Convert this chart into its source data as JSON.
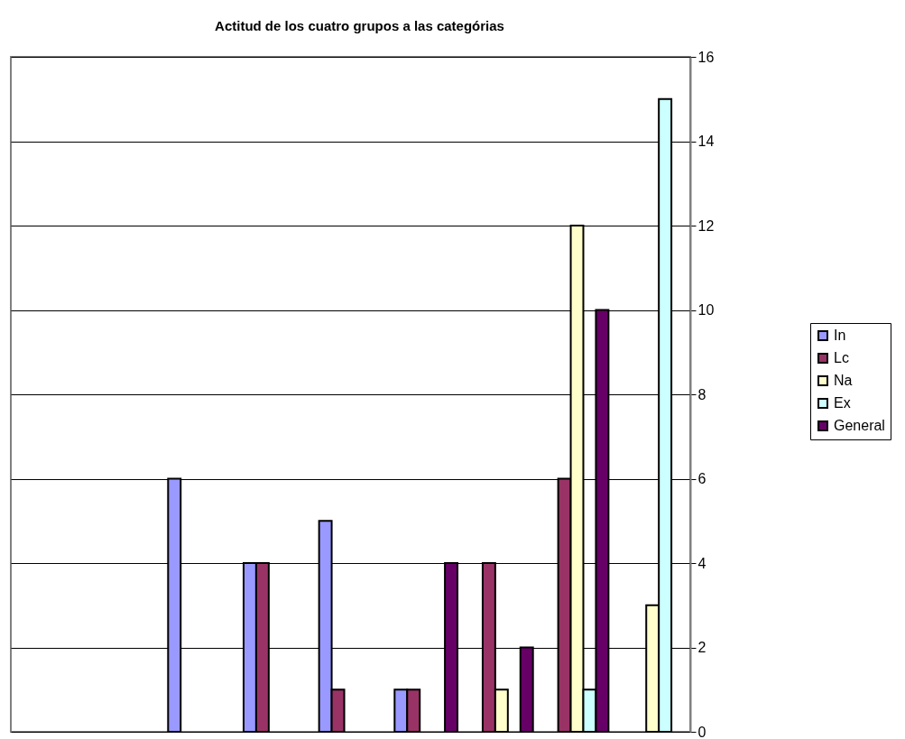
{
  "chart_data": {
    "type": "bar",
    "title": "Actitud de los cuatro grupos a las categórias",
    "categories": [
      null,
      null,
      null,
      null,
      null,
      null,
      null,
      null,
      null
    ],
    "series": [
      {
        "name": "In",
        "color": "#9999ff",
        "values": [
          0,
          0,
          6,
          4,
          5,
          1,
          0,
          0,
          0
        ]
      },
      {
        "name": "Lc",
        "color": "#993366",
        "values": [
          0,
          0,
          0,
          4,
          1,
          1,
          4,
          6,
          0
        ]
      },
      {
        "name": "Na",
        "color": "#ffffcc",
        "values": [
          0,
          0,
          0,
          0,
          0,
          0,
          1,
          12,
          3
        ]
      },
      {
        "name": "Ex",
        "color": "#ccffff",
        "values": [
          0,
          0,
          0,
          0,
          0,
          0,
          0,
          1,
          15
        ]
      },
      {
        "name": "General",
        "color": "#660066",
        "values": [
          0,
          0,
          0,
          0,
          0,
          4,
          2,
          10,
          0
        ]
      }
    ],
    "ylim": [
      0,
      16
    ],
    "yticks": [
      0,
      2,
      4,
      6,
      8,
      10,
      12,
      14,
      16
    ],
    "grid": "y",
    "legend": "right",
    "tick_labels": "y"
  }
}
